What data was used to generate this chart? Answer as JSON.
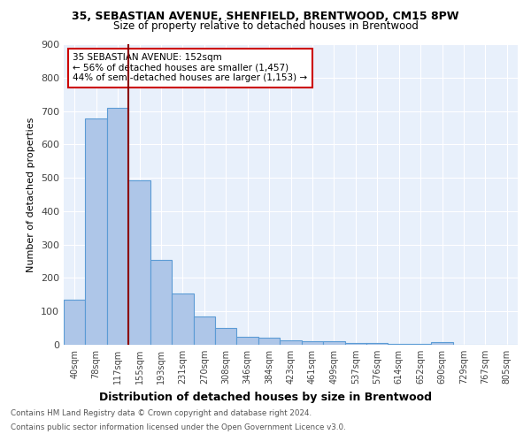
{
  "title1": "35, SEBASTIAN AVENUE, SHENFIELD, BRENTWOOD, CM15 8PW",
  "title2": "Size of property relative to detached houses in Brentwood",
  "xlabel": "Distribution of detached houses by size in Brentwood",
  "ylabel": "Number of detached properties",
  "footnote1": "Contains HM Land Registry data © Crown copyright and database right 2024.",
  "footnote2": "Contains public sector information licensed under the Open Government Licence v3.0.",
  "bar_labels": [
    "40sqm",
    "78sqm",
    "117sqm",
    "155sqm",
    "193sqm",
    "231sqm",
    "270sqm",
    "308sqm",
    "346sqm",
    "384sqm",
    "423sqm",
    "461sqm",
    "499sqm",
    "537sqm",
    "576sqm",
    "614sqm",
    "652sqm",
    "690sqm",
    "729sqm",
    "767sqm",
    "805sqm"
  ],
  "bar_values": [
    135,
    678,
    710,
    492,
    253,
    153,
    84,
    51,
    25,
    20,
    12,
    11,
    10,
    6,
    4,
    3,
    2,
    8,
    0,
    0,
    0
  ],
  "bar_color": "#aec6e8",
  "bar_edge_color": "#5b9bd5",
  "vline_color": "#8b0000",
  "annotation_text": "35 SEBASTIAN AVENUE: 152sqm\n← 56% of detached houses are smaller (1,457)\n44% of semi-detached houses are larger (1,153) →",
  "annotation_box_color": "white",
  "annotation_box_edge": "#cc0000",
  "ylim": [
    0,
    900
  ],
  "yticks": [
    0,
    100,
    200,
    300,
    400,
    500,
    600,
    700,
    800,
    900
  ],
  "bg_color": "#e8f0fb",
  "grid_color": "white"
}
